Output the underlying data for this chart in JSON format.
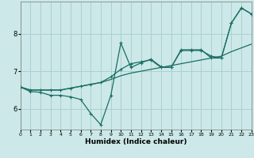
{
  "xlabel": "Humidex (Indice chaleur)",
  "bg_color": "#cce8e8",
  "grid_color": "#aad0d0",
  "line_color": "#1a6e64",
  "xlim": [
    0,
    23
  ],
  "ylim": [
    5.45,
    8.85
  ],
  "yticks": [
    6,
    7,
    8
  ],
  "xticks": [
    0,
    1,
    2,
    3,
    4,
    5,
    6,
    7,
    8,
    9,
    10,
    11,
    12,
    13,
    14,
    15,
    16,
    17,
    18,
    19,
    20,
    21,
    22,
    23
  ],
  "line1_x": [
    0,
    1,
    2,
    3,
    4,
    5,
    6,
    7,
    8,
    9,
    10,
    11,
    12,
    13,
    14,
    15,
    16,
    17,
    18,
    19,
    20,
    21,
    22,
    23
  ],
  "line1_y": [
    6.58,
    6.46,
    6.44,
    6.36,
    6.36,
    6.32,
    6.25,
    5.88,
    5.58,
    6.35,
    7.75,
    7.1,
    7.22,
    7.32,
    7.12,
    7.1,
    7.57,
    7.57,
    7.57,
    7.35,
    7.35,
    8.28,
    8.68,
    8.52
  ],
  "line2_x": [
    0,
    1,
    2,
    3,
    4,
    5,
    6,
    7,
    8,
    9,
    10,
    11,
    12,
    13,
    14,
    15,
    16,
    17,
    18,
    19,
    20,
    21,
    22,
    23
  ],
  "line2_y": [
    6.58,
    6.5,
    6.5,
    6.5,
    6.5,
    6.55,
    6.6,
    6.65,
    6.7,
    6.78,
    6.88,
    6.95,
    7.0,
    7.05,
    7.1,
    7.15,
    7.2,
    7.25,
    7.3,
    7.35,
    7.4,
    7.52,
    7.62,
    7.72
  ],
  "line3_x": [
    0,
    1,
    2,
    3,
    4,
    5,
    6,
    7,
    8,
    9,
    10,
    11,
    12,
    13,
    14,
    15,
    16,
    17,
    18,
    19,
    20,
    21,
    22,
    23
  ],
  "line3_y": [
    6.58,
    6.5,
    6.5,
    6.5,
    6.5,
    6.55,
    6.6,
    6.65,
    6.7,
    6.85,
    7.05,
    7.2,
    7.25,
    7.3,
    7.1,
    7.1,
    7.55,
    7.55,
    7.55,
    7.4,
    7.35,
    8.28,
    8.68,
    8.52
  ]
}
